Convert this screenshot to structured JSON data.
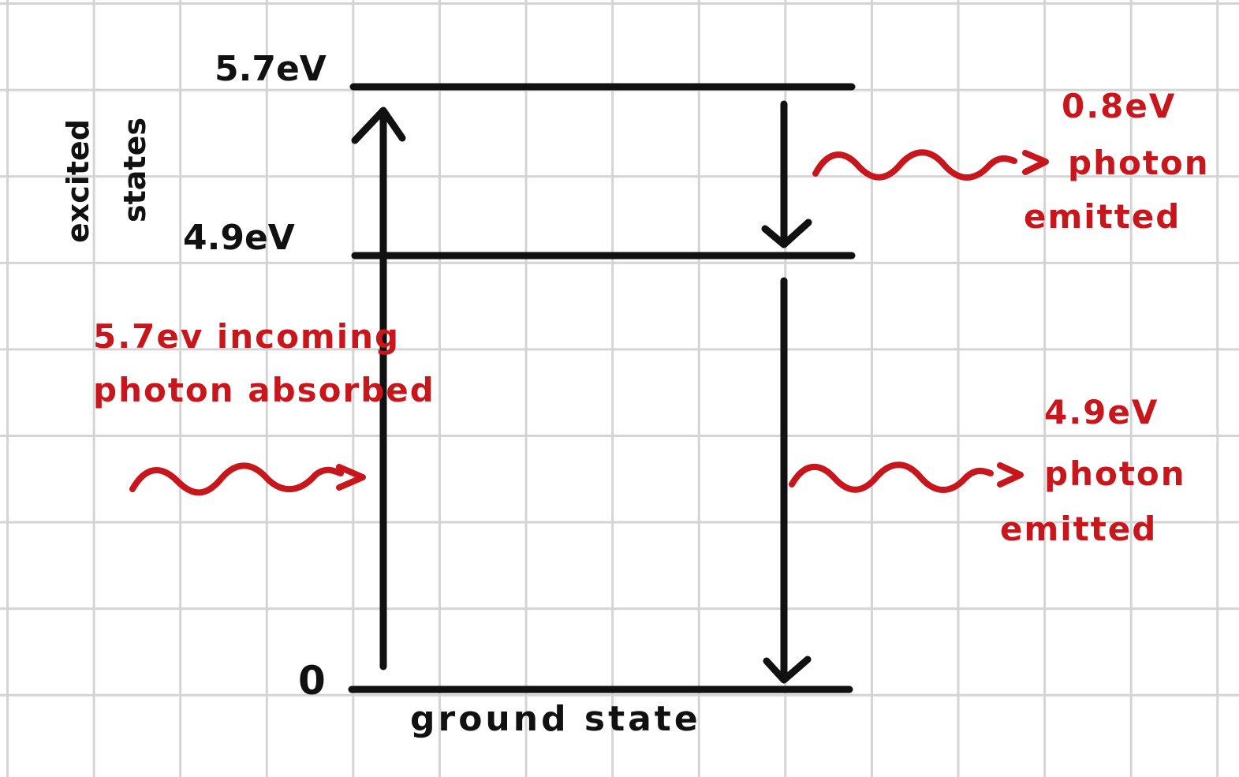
{
  "levels": {
    "top": "5.7eV",
    "middle": "4.9eV",
    "bottom": "0"
  },
  "side_label": {
    "line1": "excited",
    "line2": "states"
  },
  "ground_label": "ground state",
  "absorbed": {
    "line1": "5.7ev incoming",
    "line2": "photon absorbed"
  },
  "emitted_upper": {
    "energy": "0.8eV",
    "line1": "photon",
    "line2": "emitted"
  },
  "emitted_lower": {
    "energy": "4.9eV",
    "line1": "photon",
    "line2": "emitted"
  },
  "colors": {
    "ink": "#111111",
    "annotation": "#c8161d",
    "grid": "#d4d4d4"
  }
}
